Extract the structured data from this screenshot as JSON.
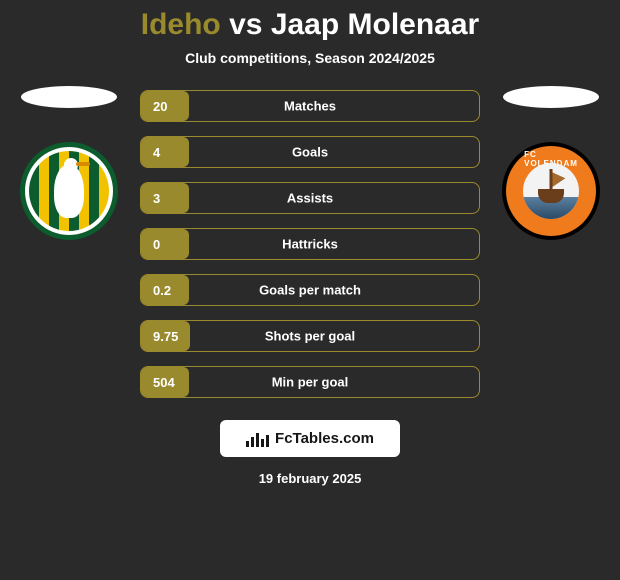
{
  "title": {
    "player1": "Ideho",
    "vs": "vs",
    "player2": "Jaap Molenaar"
  },
  "subtitle": "Club competitions, Season 2024/2025",
  "colors": {
    "accent": "#9a8a2e",
    "background": "#2a2a2a",
    "text": "#ffffff",
    "club1_primary": "#0c5c2e",
    "club1_secondary": "#f2c200",
    "club2_primary": "#ef7b1d",
    "club2_secondary": "#000000"
  },
  "clubs": {
    "left": {
      "name": "ADO Den Haag"
    },
    "right": {
      "name": "FC Volendam"
    }
  },
  "stats": [
    {
      "value": "20",
      "label": "Matches"
    },
    {
      "value": "4",
      "label": "Goals"
    },
    {
      "value": "3",
      "label": "Assists"
    },
    {
      "value": "0",
      "label": "Hattricks"
    },
    {
      "value": "0.2",
      "label": "Goals per match"
    },
    {
      "value": "9.75",
      "label": "Shots per goal"
    },
    {
      "value": "504",
      "label": "Min per goal"
    }
  ],
  "logo_text": "FcTables.com",
  "footer_date": "19 february 2025"
}
